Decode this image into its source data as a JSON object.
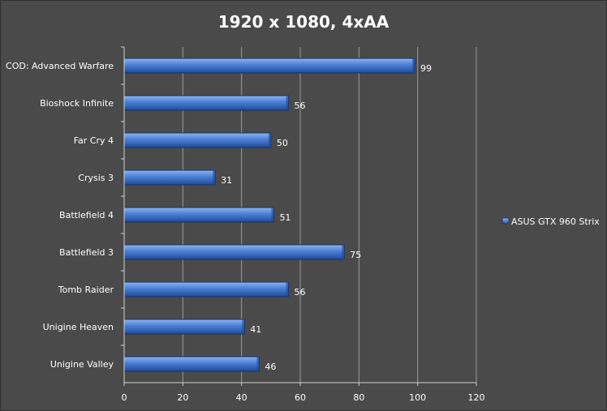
{
  "chart_data": {
    "type": "bar",
    "orientation": "horizontal",
    "title": "1920 x 1080, 4xAA",
    "categories": [
      "COD: Advanced Warfare",
      "Bioshock Infinite",
      "Far Cry 4",
      "Crysis 3",
      "Battlefield 4",
      "Battlefield 3",
      "Tomb Raider",
      "Unigine Heaven",
      "Unigine Valley"
    ],
    "series": [
      {
        "name": "ASUS GTX 960 Strix",
        "values": [
          99,
          56,
          50,
          31,
          51,
          75,
          56,
          41,
          46
        ],
        "color": "#4a7fd6"
      }
    ],
    "xlim": [
      0,
      120
    ],
    "xticks": [
      0,
      20,
      40,
      60,
      80,
      100,
      120
    ],
    "grid": true,
    "legend_position": "right",
    "data_labels": true
  },
  "colors": {
    "background": "#4a4a4a",
    "gridline": "#9a9a9a",
    "axis": "#d0d0d0",
    "bar_top": "#8fb3ef",
    "bar_mid": "#4a7fd6",
    "bar_bottom": "#1f4a99",
    "bar_edge": "#16315f"
  }
}
